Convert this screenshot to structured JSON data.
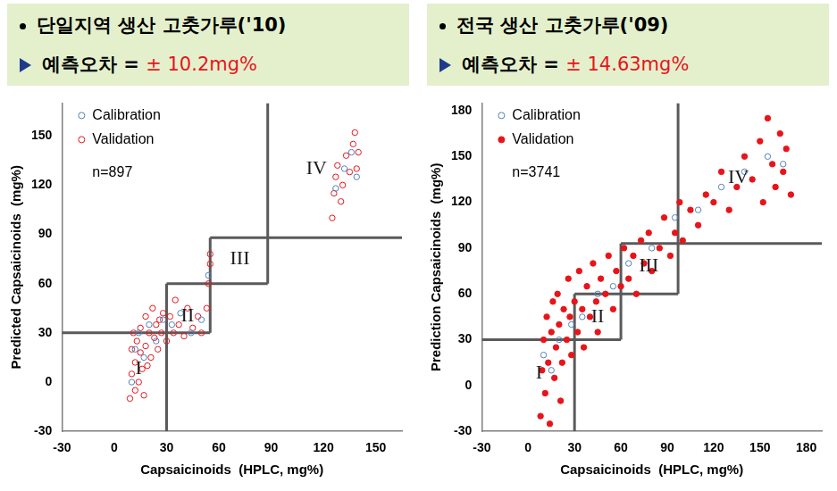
{
  "chart_data": [
    {
      "type": "scatter",
      "title": "단일지역 생산 고춧가루('10)",
      "subtitle": "예측오차 = ± 10.2mg%",
      "x_label": "Capsaicinoids  (HPLC, mg%)",
      "y_label": "Predicted Capsaicinoids  (mg%)",
      "xlim": [
        -30,
        165
      ],
      "xticks": [
        -30,
        0,
        30,
        60,
        90,
        120,
        150
      ],
      "ylim": [
        -30,
        170
      ],
      "yticks": [
        -30,
        0,
        30,
        60,
        90,
        120,
        150
      ],
      "grid": false,
      "legend": "upper left",
      "note": "n=897",
      "series": [
        {
          "name": "Calibration",
          "color": "#4f81bd",
          "marker": "circle_open",
          "x": [
            10,
            12,
            14,
            17,
            20,
            24,
            28,
            33,
            38,
            44,
            50,
            54,
            127,
            132,
            136,
            139
          ],
          "values": [
            0,
            20,
            30,
            15,
            35,
            25,
            38,
            35,
            42,
            30,
            38,
            65,
            118,
            130,
            140,
            125
          ]
        },
        {
          "name": "Validation",
          "color": "#e8141a",
          "marker": "circle_open",
          "x": [
            9,
            10,
            10,
            11,
            12,
            12,
            13,
            14,
            15,
            15,
            16,
            17,
            18,
            18,
            19,
            20,
            21,
            22,
            23,
            24,
            25,
            26,
            27,
            28,
            30,
            32,
            34,
            35,
            37,
            40,
            42,
            45,
            48,
            50,
            53,
            54,
            55,
            55,
            125,
            126,
            127,
            128,
            130,
            131,
            133,
            135,
            137,
            138,
            139,
            140
          ],
          "values": [
            -10,
            5,
            20,
            30,
            -5,
            12,
            25,
            0,
            18,
            33,
            8,
            -8,
            22,
            40,
            10,
            30,
            15,
            45,
            27,
            35,
            20,
            38,
            30,
            42,
            25,
            40,
            30,
            50,
            35,
            28,
            45,
            33,
            40,
            30,
            45,
            60,
            72,
            78,
            100,
            115,
            125,
            132,
            110,
            120,
            138,
            128,
            145,
            152,
            130,
            140
          ]
        }
      ],
      "boundary_lines": [
        {
          "x": [
            -30,
            55
          ],
          "y": [
            30,
            30
          ]
        },
        {
          "x": [
            30,
            30
          ],
          "y": [
            -30,
            60
          ]
        },
        {
          "x": [
            30,
            88
          ],
          "y": [
            60,
            60
          ]
        },
        {
          "x": [
            55,
            55
          ],
          "y": [
            30,
            88
          ]
        },
        {
          "x": [
            55,
            165
          ],
          "y": [
            88,
            88
          ]
        },
        {
          "x": [
            88,
            88
          ],
          "y": [
            60,
            170
          ]
        }
      ],
      "annotations": [
        {
          "text": "I",
          "x": 14,
          "y": 8
        },
        {
          "text": "II",
          "x": 42,
          "y": 40
        },
        {
          "text": "III",
          "x": 72,
          "y": 75
        },
        {
          "text": "IV",
          "x": 116,
          "y": 130
        }
      ]
    },
    {
      "type": "scatter",
      "title": "전국 생산 고춧가루('09)",
      "subtitle": "예측오차 = ± 14.63mg%",
      "x_label": "Capsaicinoids  (HPLC, mg%)",
      "y_label": "Prediction Capsaicinoids  (mg%)",
      "xlim": [
        -30,
        190
      ],
      "xticks": [
        -30,
        0,
        30,
        60,
        90,
        120,
        150,
        180
      ],
      "ylim": [
        -30,
        185
      ],
      "yticks": [
        -30,
        0,
        30,
        60,
        90,
        120,
        150,
        180
      ],
      "grid": false,
      "legend": "upper left",
      "note": "n=3741",
      "series": [
        {
          "name": "Calibration",
          "color": "#4f81bd",
          "marker": "circle_open",
          "x": [
            10,
            15,
            20,
            28,
            35,
            45,
            55,
            65,
            80,
            95,
            110,
            125,
            140,
            155,
            165
          ],
          "values": [
            20,
            10,
            30,
            40,
            45,
            60,
            65,
            80,
            90,
            110,
            115,
            130,
            140,
            150,
            145
          ]
        },
        {
          "name": "Validation",
          "color": "#e8141a",
          "marker": "circle",
          "x": [
            8,
            9,
            10,
            11,
            12,
            13,
            14,
            15,
            16,
            17,
            18,
            19,
            20,
            21,
            22,
            23,
            25,
            26,
            27,
            28,
            30,
            32,
            33,
            35,
            36,
            38,
            40,
            42,
            44,
            45,
            47,
            50,
            52,
            55,
            57,
            60,
            62,
            65,
            68,
            70,
            73,
            75,
            78,
            80,
            85,
            88,
            92,
            95,
            98,
            100,
            105,
            110,
            115,
            120,
            125,
            130,
            135,
            140,
            145,
            150,
            152,
            155,
            158,
            160,
            163,
            165,
            167,
            170
          ],
          "values": [
            -20,
            10,
            30,
            -5,
            45,
            15,
            -25,
            35,
            55,
            5,
            25,
            60,
            40,
            -10,
            15,
            50,
            30,
            70,
            45,
            20,
            55,
            35,
            75,
            50,
            25,
            65,
            45,
            80,
            55,
            35,
            70,
            60,
            85,
            50,
            75,
            65,
            90,
            70,
            85,
            60,
            95,
            80,
            100,
            75,
            90,
            110,
            85,
            100,
            120,
            95,
            115,
            105,
            125,
            120,
            140,
            115,
            130,
            150,
            135,
            160,
            120,
            175,
            145,
            130,
            165,
            140,
            155,
            125
          ]
        }
      ],
      "boundary_lines": [
        {
          "x": [
            -30,
            60
          ],
          "y": [
            30,
            30
          ]
        },
        {
          "x": [
            30,
            30
          ],
          "y": [
            -30,
            60
          ]
        },
        {
          "x": [
            30,
            97
          ],
          "y": [
            60,
            60
          ]
        },
        {
          "x": [
            60,
            60
          ],
          "y": [
            30,
            93
          ]
        },
        {
          "x": [
            60,
            190
          ],
          "y": [
            93,
            93
          ]
        },
        {
          "x": [
            97,
            97
          ],
          "y": [
            60,
            185
          ]
        }
      ],
      "annotations": [
        {
          "text": "I",
          "x": 7,
          "y": 8
        },
        {
          "text": "II",
          "x": 45,
          "y": 45
        },
        {
          "text": "III",
          "x": 78,
          "y": 78
        },
        {
          "text": "IV",
          "x": 136,
          "y": 136
        }
      ]
    }
  ]
}
